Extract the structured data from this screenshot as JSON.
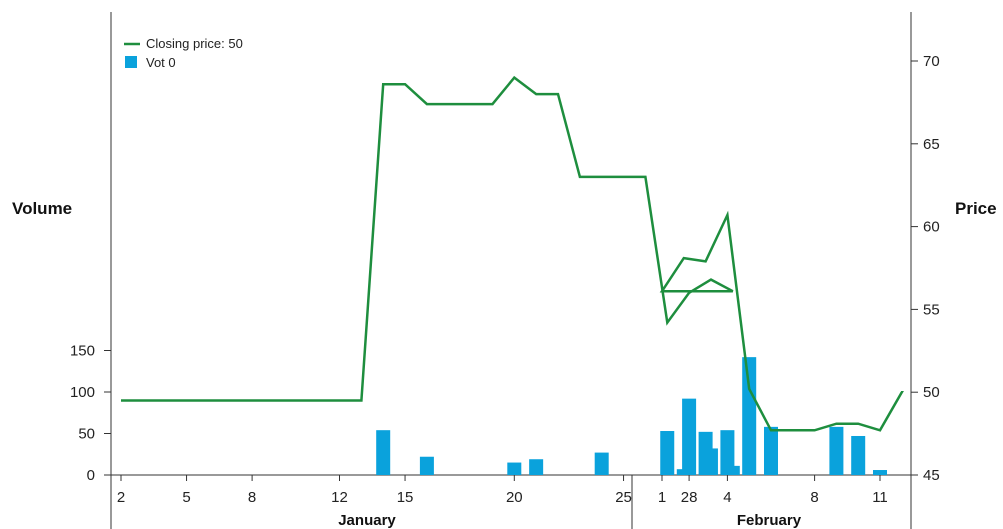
{
  "chart_data": {
    "type": "bar+line",
    "x_ticks": [
      "2",
      "5",
      "8",
      "12",
      "15",
      "20",
      "25",
      "28",
      "1",
      "4",
      "8",
      "11"
    ],
    "months": [
      "January",
      "February"
    ],
    "left_axis": {
      "label": "Volume",
      "ticks": [
        "0",
        "50",
        "100",
        "150"
      ],
      "range": [
        0,
        150
      ]
    },
    "right_axis": {
      "label": "Price",
      "ticks": [
        "45",
        "50",
        "55",
        "60",
        "65",
        "70"
      ],
      "range": [
        45,
        70
      ]
    },
    "legend": {
      "line_label": "Closing price: 50",
      "bar_label": "Vot 0"
    },
    "colors": {
      "line": "#1e8e3e",
      "bar": "#0aa2dc",
      "axis": "#333333"
    },
    "volume_bars": [
      {
        "day": "Jan 14",
        "value": 54
      },
      {
        "day": "Jan 16",
        "value": 22
      },
      {
        "day": "Jan 20",
        "value": 15
      },
      {
        "day": "Jan 21",
        "value": 19
      },
      {
        "day": "Jan 24",
        "value": 27
      },
      {
        "day": "Jan 27",
        "value": 53
      },
      {
        "day": "Jan 28",
        "value": 92
      },
      {
        "day": "Jan 29",
        "value": 32
      },
      {
        "day": "Jan 30",
        "value": 11
      },
      {
        "day": "Feb 2",
        "value": 7
      },
      {
        "day": "Feb 3",
        "value": 52
      },
      {
        "day": "Feb 4",
        "value": 54
      },
      {
        "day": "Feb 5",
        "value": 142
      },
      {
        "day": "Feb 6",
        "value": 58
      },
      {
        "day": "Feb 9",
        "value": 58
      },
      {
        "day": "Feb 10",
        "value": 47
      },
      {
        "day": "Feb 11",
        "value": 6
      }
    ],
    "price_line": [
      {
        "day": "Jan 2",
        "value": 49.5
      },
      {
        "day": "Jan 13",
        "value": 49.5
      },
      {
        "day": "Jan 14",
        "value": 68.6
      },
      {
        "day": "Jan 15",
        "value": 68.6
      },
      {
        "day": "Jan 16",
        "value": 67.4
      },
      {
        "day": "Jan 19",
        "value": 67.4
      },
      {
        "day": "Jan 20",
        "value": 69.0
      },
      {
        "day": "Jan 21",
        "value": 68.0
      },
      {
        "day": "Jan 22",
        "value": 68.0
      },
      {
        "day": "Jan 23",
        "value": 63.0
      },
      {
        "day": "Jan 26",
        "value": 63.0
      },
      {
        "day": "Jan 27",
        "value": 54.2
      },
      {
        "day": "Jan 28",
        "value": 56.0
      },
      {
        "day": "Jan 29",
        "value": 56.8
      },
      {
        "day": "Jan 30",
        "value": 56.1
      },
      {
        "day": "Feb 1",
        "value": 56.1
      },
      {
        "day": "Feb 2",
        "value": 58.1
      },
      {
        "day": "Feb 3",
        "value": 57.9
      },
      {
        "day": "Feb 4",
        "value": 60.7
      },
      {
        "day": "Feb 5",
        "value": 50.2
      },
      {
        "day": "Feb 6",
        "value": 47.7
      },
      {
        "day": "Feb 8",
        "value": 47.7
      },
      {
        "day": "Feb 9",
        "value": 48.1
      },
      {
        "day": "Feb 10",
        "value": 48.1
      },
      {
        "day": "Feb 11",
        "value": 47.7
      },
      {
        "day": "Feb 12",
        "value": 50.0
      },
      {
        "day": "Feb 13",
        "value": 50.0
      }
    ]
  }
}
